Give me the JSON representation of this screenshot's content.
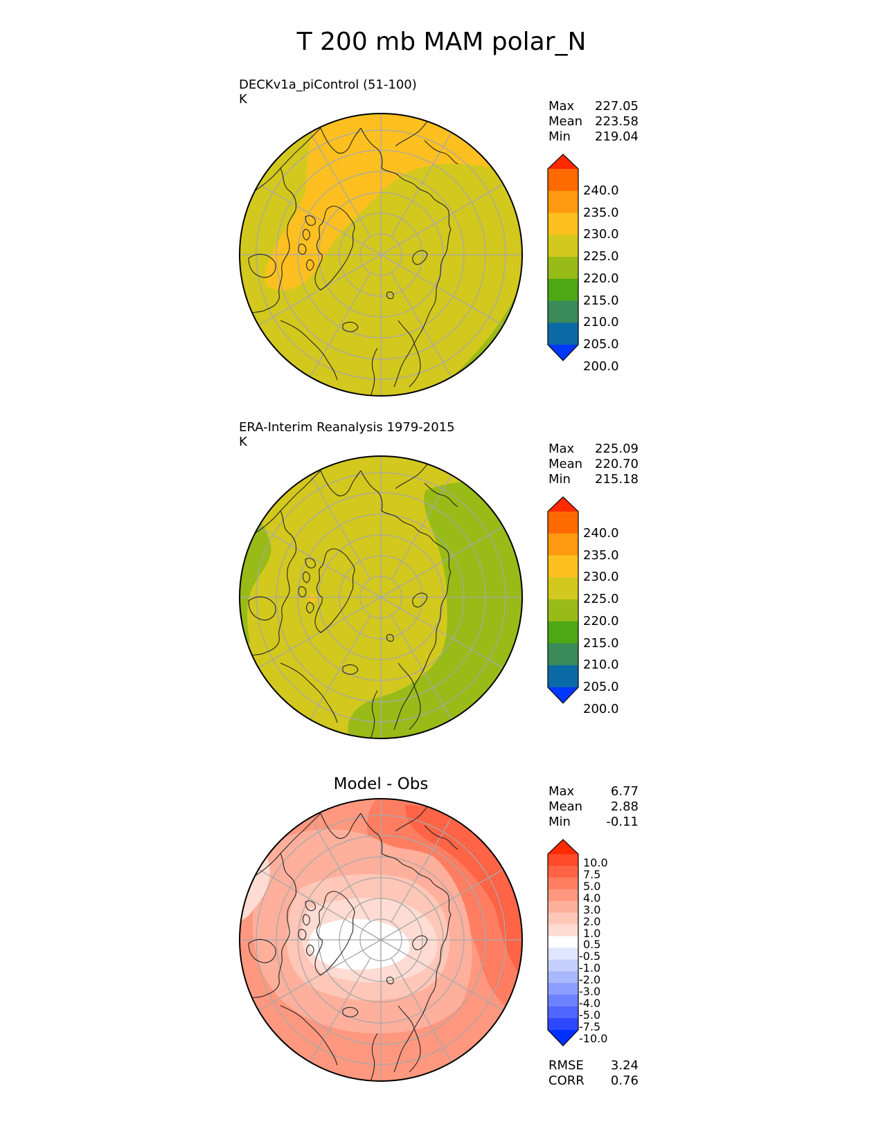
{
  "title": "T 200 mb MAM polar_N",
  "panels": [
    {
      "id": "model",
      "title": "DECKv1a_piControl (51-100)",
      "units": "K",
      "stats": [
        {
          "label": "Max",
          "value": "227.05"
        },
        {
          "label": "Mean",
          "value": "223.58"
        },
        {
          "label": "Min",
          "value": "219.04"
        }
      ]
    },
    {
      "id": "obs",
      "title": "ERA-Interim Reanalysis 1979-2015",
      "units": "K",
      "stats": [
        {
          "label": "Max",
          "value": "225.09"
        },
        {
          "label": "Mean",
          "value": "220.70"
        },
        {
          "label": "Min",
          "value": "215.18"
        }
      ]
    },
    {
      "id": "diff",
      "title": "Model - Obs",
      "units": "",
      "stats": [
        {
          "label": "Max",
          "value": "6.77"
        },
        {
          "label": "Mean",
          "value": "2.88"
        },
        {
          "label": "Min",
          "value": "-0.11"
        }
      ],
      "footer": [
        {
          "label": "RMSE",
          "value": "3.24"
        },
        {
          "label": "CORR",
          "value": "0.76"
        }
      ]
    }
  ],
  "colorbar_abs": {
    "labels": [
      "240.0",
      "235.0",
      "230.0",
      "225.0",
      "220.0",
      "215.0",
      "210.0",
      "205.0",
      "200.0"
    ],
    "colors": [
      "#ff2a00",
      "#ff6a00",
      "#ff9a10",
      "#fdc020",
      "#d3c81e",
      "#98bb18",
      "#4ea816",
      "#3a8a5a",
      "#0a6aa6",
      "#0038ff"
    ]
  },
  "colorbar_diff": {
    "labels": [
      "10.0",
      "7.5",
      "5.0",
      "4.0",
      "3.0",
      "2.0",
      "1.0",
      "0.5",
      "-0.5",
      "-1.0",
      "-2.0",
      "-3.0",
      "-4.0",
      "-5.0",
      "-7.5",
      "-10.0"
    ],
    "colors": [
      "#ff2a00",
      "#ff4a28",
      "#ff6446",
      "#ff7e62",
      "#ff987f",
      "#ffb09c",
      "#ffc7b8",
      "#ffdcd3",
      "#ffffff",
      "#e0e6ff",
      "#c6d0ff",
      "#aab8ff",
      "#8c9eff",
      "#6e82ff",
      "#4f66ff",
      "#2e48ff",
      "#0030ff"
    ]
  },
  "map_colors": {
    "t220_225": "#d3c81e",
    "t225_230": "#fdc020",
    "t215_220": "#98bb18",
    "d0": "#ffffff",
    "d05": "#ffdcd3",
    "d1": "#ffc7b8",
    "d2": "#ffb09c",
    "d3": "#ff987f",
    "d4": "#ff7e62",
    "d5": "#ff6446",
    "grid": "#a8a8a8",
    "coast": "#222222"
  }
}
